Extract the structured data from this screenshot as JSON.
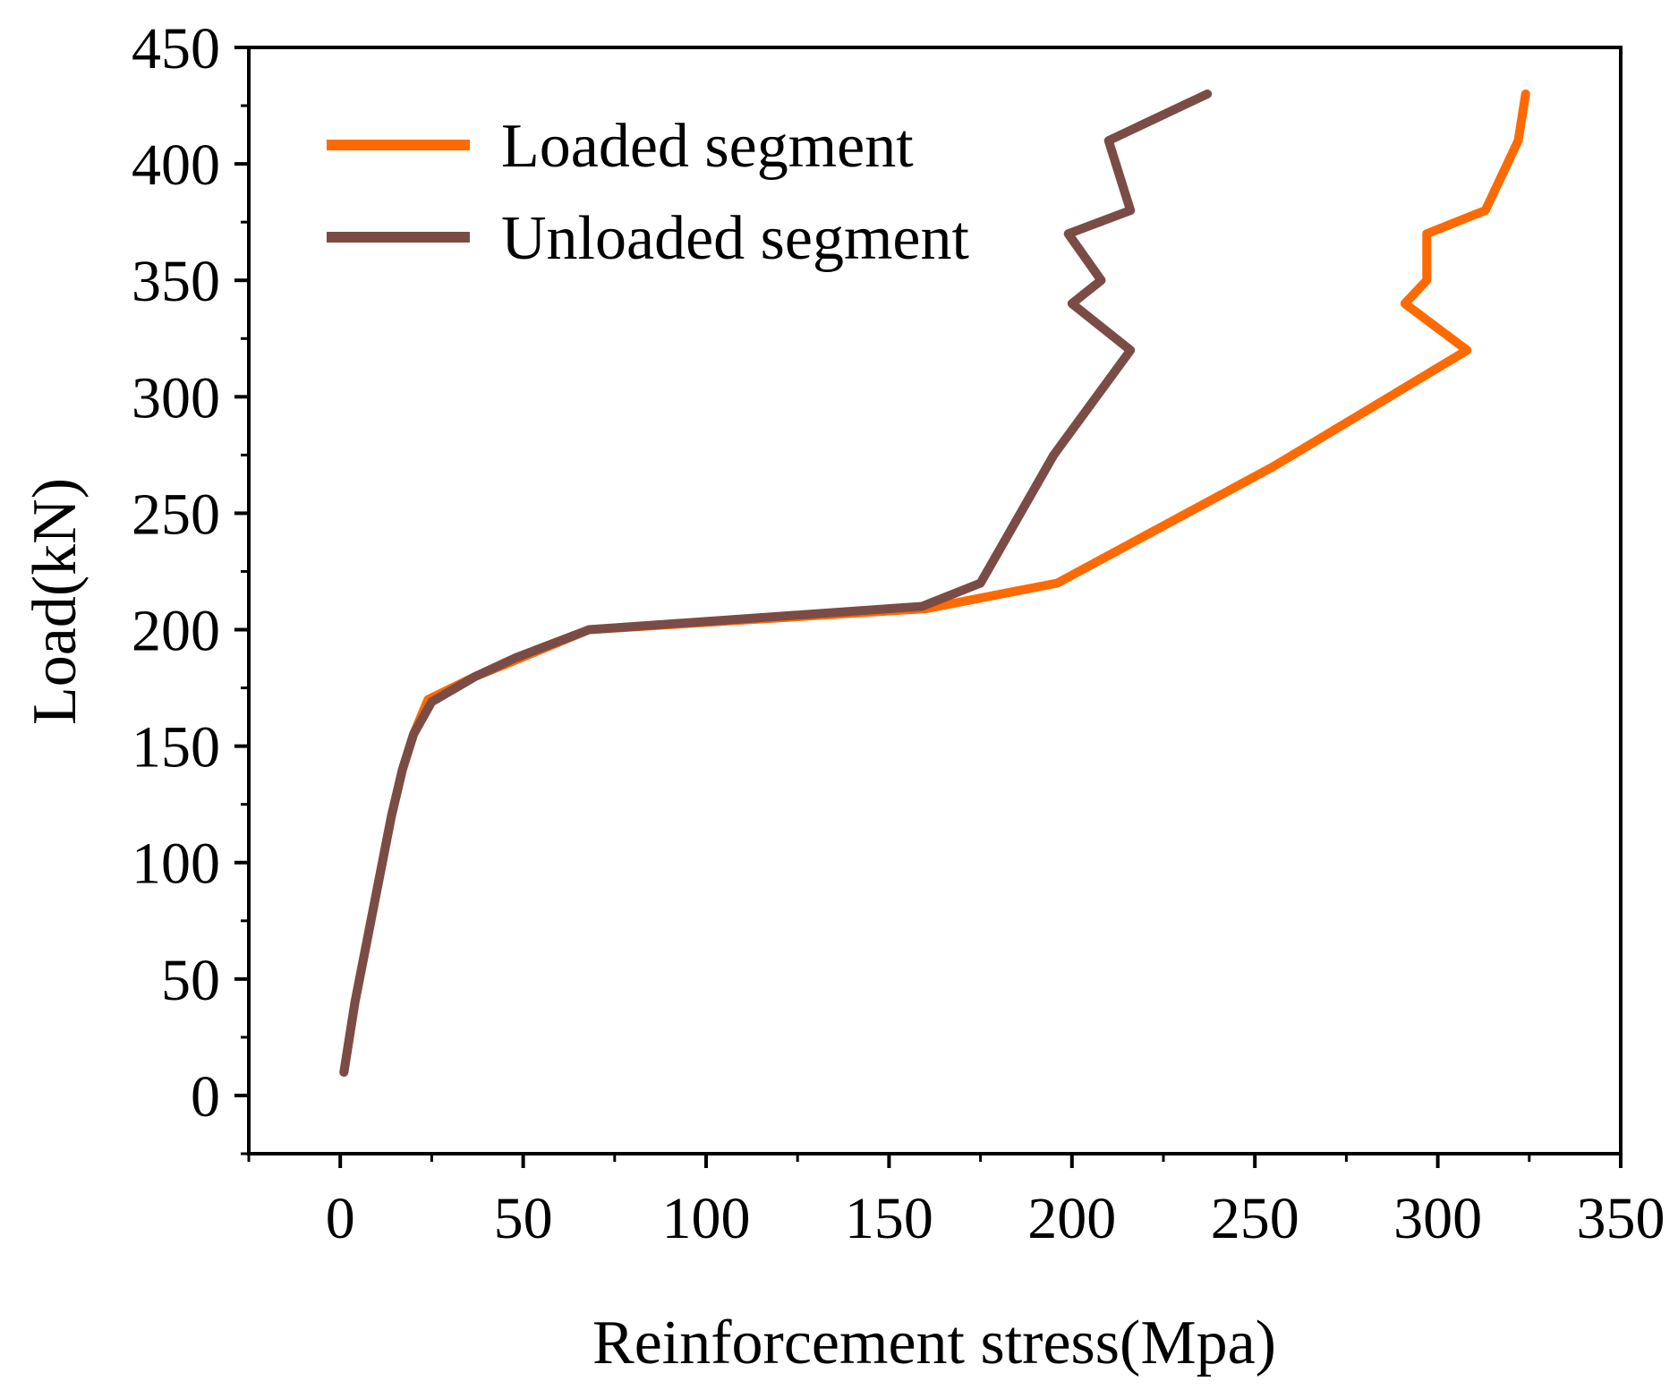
{
  "chart_data": {
    "type": "line",
    "title": "",
    "xlabel": "Reinforcement stress(Mpa)",
    "ylabel": "Load(kN)",
    "xlim": [
      -25,
      350
    ],
    "ylim": [
      -25,
      450
    ],
    "xticks": [
      0,
      50,
      100,
      150,
      200,
      250,
      300,
      350
    ],
    "yticks": [
      0,
      50,
      100,
      150,
      200,
      250,
      300,
      350,
      400,
      450
    ],
    "xtick_labels": [
      "0",
      "50",
      "100",
      "150",
      "200",
      "250",
      "300",
      "350"
    ],
    "ytick_labels": [
      "0",
      "50",
      "100",
      "150",
      "200",
      "250",
      "300",
      "350",
      "400",
      "450"
    ],
    "grid": false,
    "legend_position": "top-left",
    "series": [
      {
        "name": "Loaded segment",
        "color": "#FF6A00",
        "x": [
          1,
          4,
          9,
          14,
          17,
          20,
          24,
          37,
          48,
          68,
          160,
          196,
          255,
          308,
          291,
          297,
          297,
          313,
          322,
          324
        ],
        "y": [
          10,
          40,
          80,
          120,
          140,
          155,
          170,
          180,
          187,
          200,
          209,
          220,
          270,
          320,
          340,
          350,
          370,
          380,
          410,
          430
        ]
      },
      {
        "name": "Unloaded segment",
        "color": "#7B4C45",
        "x": [
          1,
          4,
          9,
          14,
          17,
          20,
          25,
          37,
          48,
          68,
          159,
          175,
          195,
          216,
          200,
          208,
          199,
          216,
          210,
          237
        ],
        "y": [
          10,
          40,
          80,
          120,
          140,
          155,
          169,
          180,
          188,
          200,
          210,
          220,
          275,
          320,
          340,
          350,
          370,
          380,
          410,
          430
        ]
      }
    ]
  }
}
